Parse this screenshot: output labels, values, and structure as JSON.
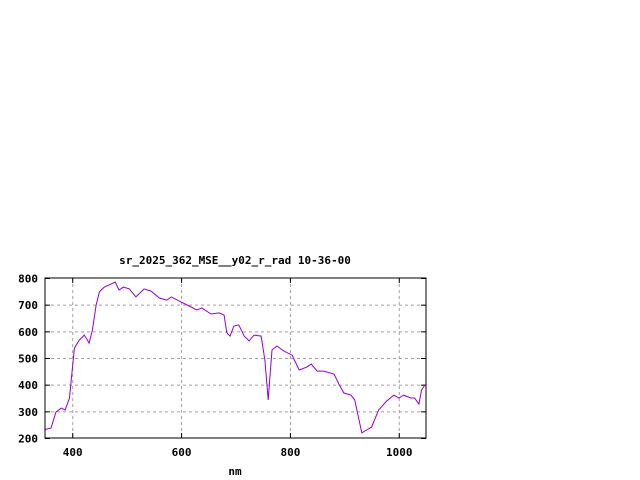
{
  "chart_data": {
    "type": "line",
    "title": "sr_2025_362_MSE__y02_r_rad 10-36-00",
    "xlabel": "nm",
    "ylabel": "",
    "xlim": [
      350,
      1050
    ],
    "ylim": [
      200,
      800
    ],
    "xticks": [
      400,
      600,
      800,
      1000
    ],
    "yticks": [
      200,
      300,
      400,
      500,
      600,
      700,
      800
    ],
    "grid": true,
    "line_color": "#9400d3",
    "series": [
      {
        "x": [
          350,
          361,
          370,
          380,
          387,
          395,
          400,
          404,
          413,
          422,
          427,
          431,
          437,
          444,
          450,
          459,
          468,
          479,
          486,
          494,
          505,
          517,
          532,
          545,
          560,
          574,
          582,
          596,
          615,
          629,
          638,
          655,
          670,
          679,
          684,
          690,
          697,
          706,
          716,
          725,
          734,
          747,
          754,
          760,
          767,
          776,
          789,
          804,
          817,
          831,
          839,
          850,
          862,
          881,
          890,
          899,
          912,
          919,
          932,
          941,
          950,
          963,
          978,
          991,
          1000,
          1009,
          1022,
          1029,
          1037,
          1042,
          1048
        ],
        "y": [
          232,
          237,
          297,
          312,
          305,
          350,
          455,
          537,
          567,
          586,
          571,
          556,
          605,
          700,
          748,
          766,
          774,
          785,
          755,
          766,
          759,
          729,
          759,
          751,
          725,
          717,
          729,
          714,
          695,
          680,
          688,
          665,
          669,
          661,
          594,
          582,
          620,
          624,
          582,
          564,
          586,
          582,
          492,
          343,
          530,
          545,
          526,
          511,
          455,
          466,
          477,
          451,
          451,
          440,
          402,
          369,
          361,
          343,
          219,
          230,
          241,
          305,
          339,
          361,
          350,
          361,
          350,
          350,
          327,
          380,
          399
        ]
      }
    ]
  }
}
